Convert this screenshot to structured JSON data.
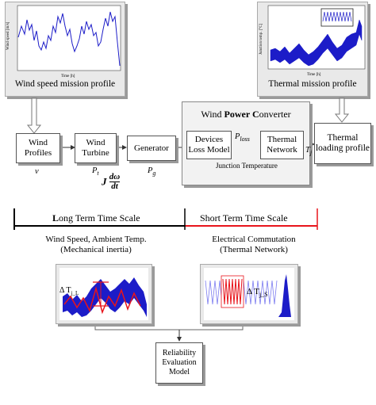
{
  "top_left_panel": {
    "caption": "Wind speed mission profile"
  },
  "top_right_panel": {
    "caption": "Thermal mission profile"
  },
  "blocks": {
    "wind_profiles": "Wind Profiles",
    "wind_turbine": "Wind Turbine",
    "generator": "Generator",
    "converter_title_prefix": "Wind ",
    "converter_title_bold": "Power C",
    "converter_title_suffix": "onverter",
    "devices_loss_model": "Devices Loss Model",
    "thermal_network": "Thermal Network",
    "junction_temperature": "Junction Temperature",
    "thermal_loading_profile": "Thermal loading profile",
    "reliability_model": "Reliability Evaluation Model"
  },
  "symbols": {
    "v": "v",
    "pt": "P",
    "pt_sub": "t",
    "j": "J",
    "domega_num": "dω",
    "domega_den": "dt",
    "pg": "P",
    "pg_sub": "g",
    "ploss": "P",
    "ploss_sub": "loss",
    "tj": "T",
    "tj_sub": "j"
  },
  "timescale": {
    "long_prefix": "L",
    "long_rest": "ong Term Time Scale",
    "short": "Short Term Time Scale",
    "long_color": "#000000",
    "short_color": "#e8141b"
  },
  "lower_left": {
    "caption_line1": "Wind Speed, Ambient Temp.",
    "caption_line2": "(Mechanical inertia)",
    "delta_label": "Δ T",
    "delta_sub": "j_L"
  },
  "lower_right": {
    "caption_line1": "Electrical Commutation",
    "caption_line2": "(Thermal Network)",
    "delta_label": "Δ T",
    "delta_sub": "j_S"
  },
  "colors": {
    "signal": "#1c1cc8",
    "accent": "#e8141b",
    "panel_bg": "#e9e9e9"
  }
}
